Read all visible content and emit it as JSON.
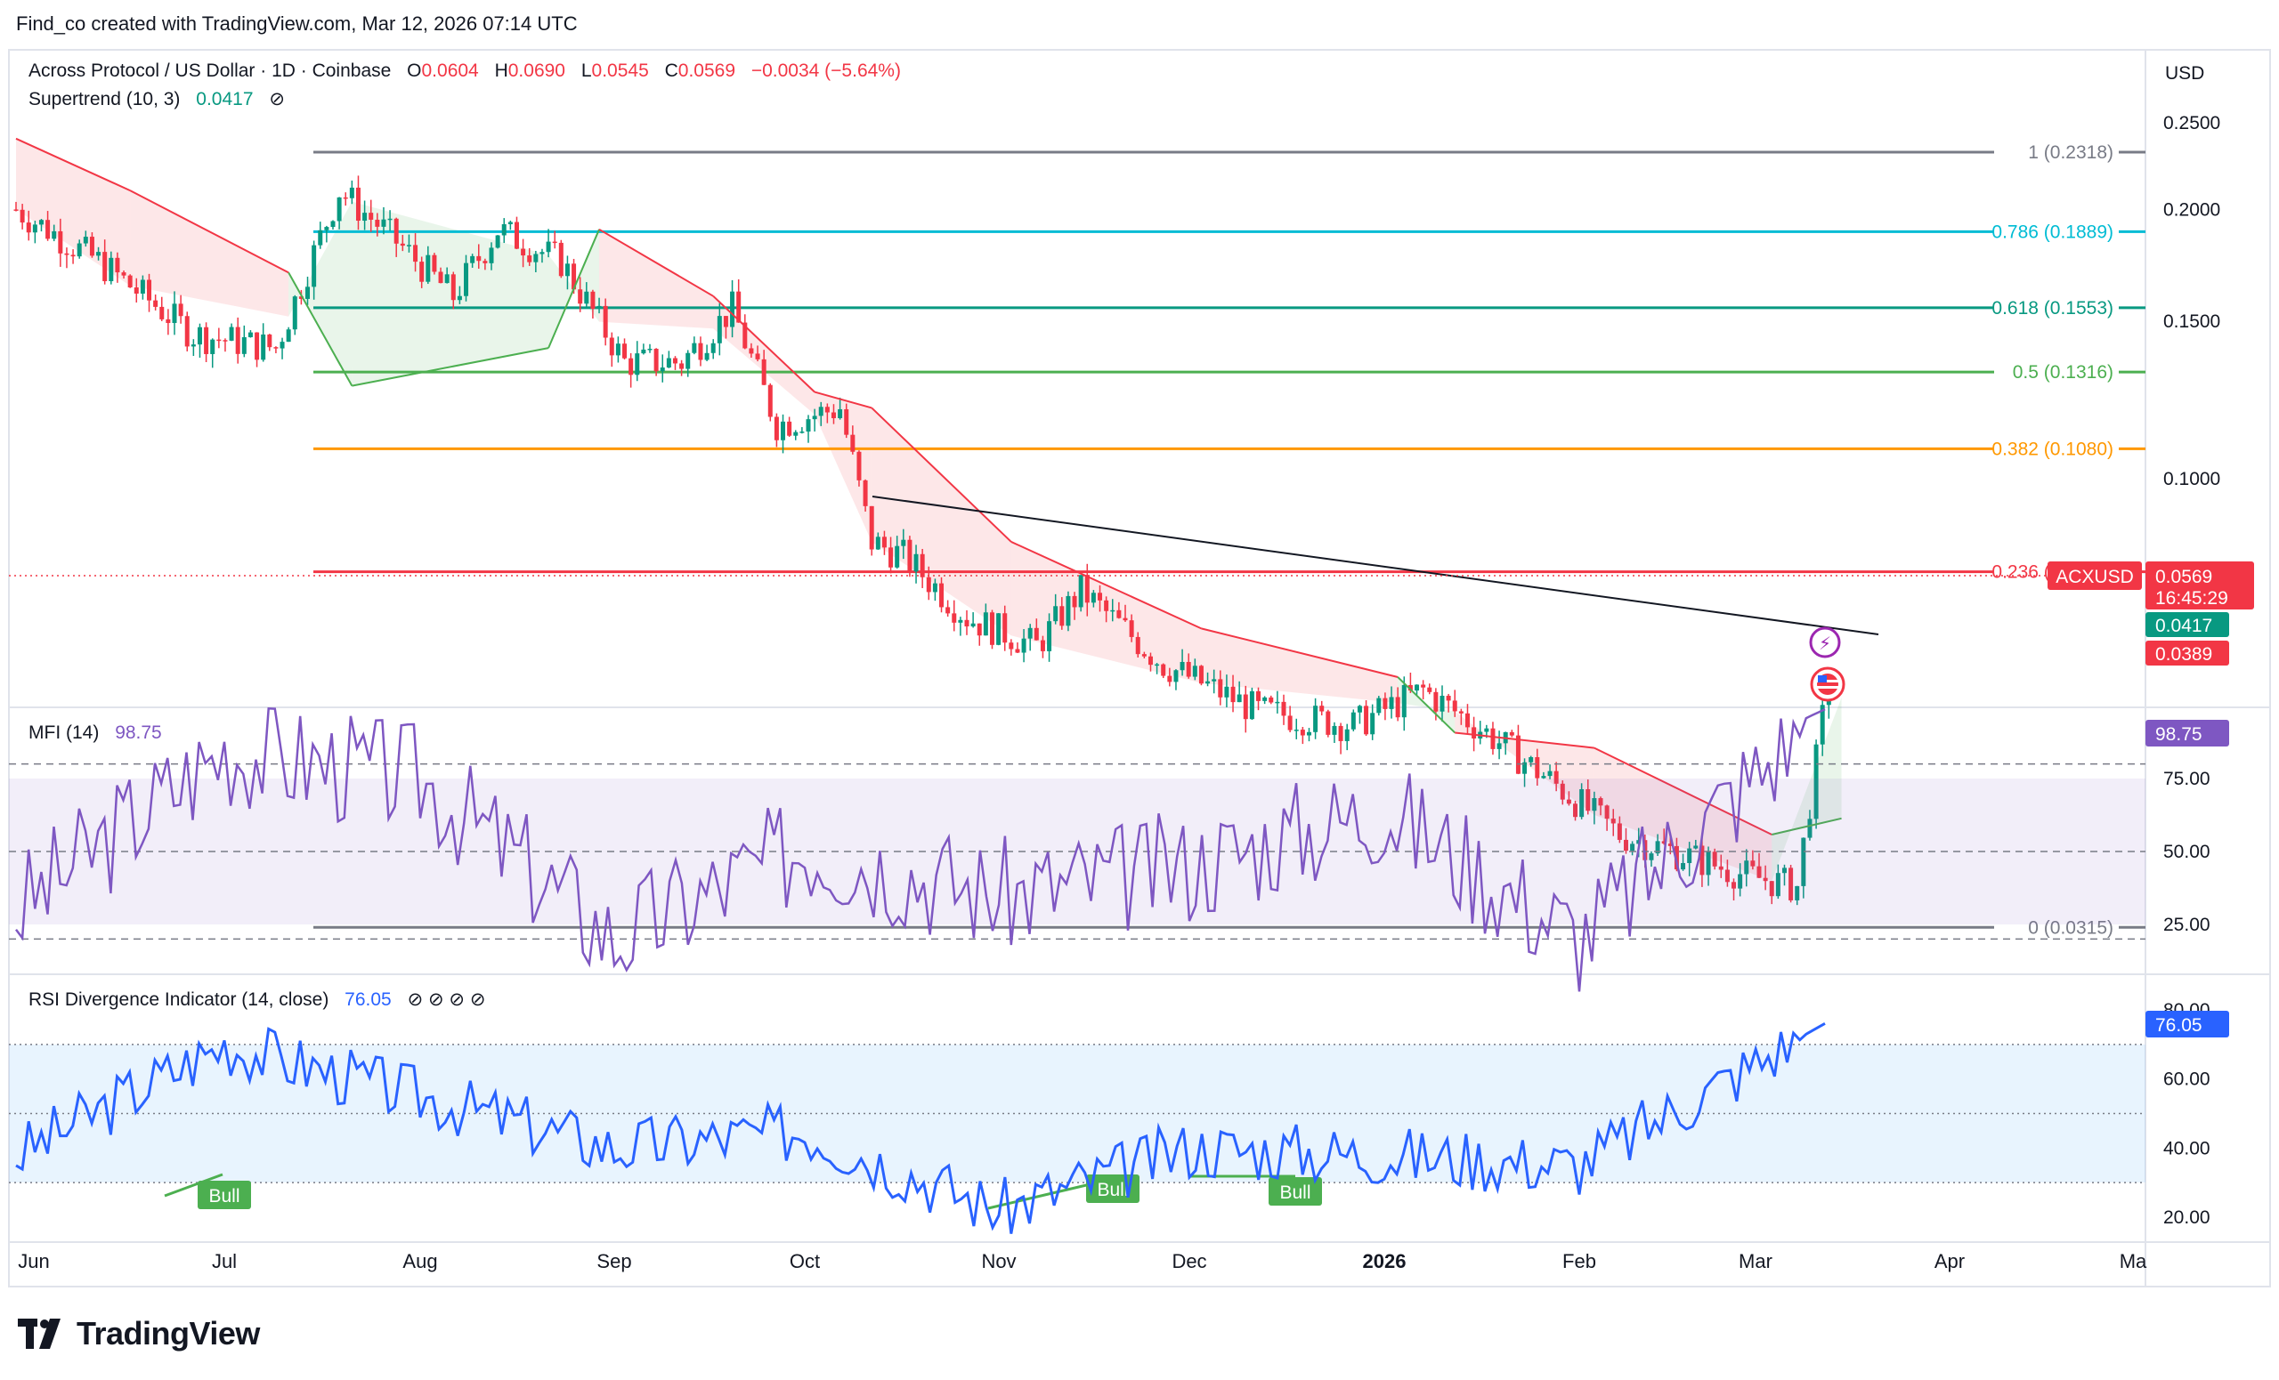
{
  "header": {
    "text": "Find_co created with TradingView.com, Mar 12, 2026 07:14 UTC"
  },
  "footer": {
    "brand": "TradingView"
  },
  "legend": {
    "symbol": "Across Protocol / US Dollar · 1D · Coinbase",
    "o_label": "O",
    "o_val": "0.0604",
    "h_label": "H",
    "h_val": "0.0690",
    "l_label": "L",
    "l_val": "0.0545",
    "c_label": "C",
    "c_val": "0.0569",
    "change": "−0.0034 (−5.64%)",
    "supertrend_label": "Supertrend (10, 3)",
    "supertrend_val": "0.0417",
    "hide_icon": "⊘",
    "mfi_label": "MFI (14)",
    "mfi_val": "98.75",
    "rsi_label": "RSI Divergence Indicator (14, close)",
    "rsi_val": "76.05",
    "rsi_icons": "⊘ ⊘ ⊘ ⊘"
  },
  "price_axis": {
    "currency": "USD",
    "ticks": [
      "0.2500",
      "0.2000",
      "0.1500",
      "0.1000"
    ],
    "tick_values": [
      0.25,
      0.2,
      0.15,
      0.1
    ]
  },
  "badges": {
    "symbol": "ACXUSD",
    "price": "0.0569",
    "countdown": "16:45:29",
    "supertrend": "0.0417",
    "low": "0.0389",
    "mfi": "98.75",
    "rsi": "76.05"
  },
  "fib_levels": [
    {
      "label": "1 (0.2318)",
      "value": 0.2318,
      "color": "#787b86"
    },
    {
      "label": "0.786 (0.1889)",
      "value": 0.1889,
      "color": "#00bcd4"
    },
    {
      "label": "0.618 (0.1553)",
      "value": 0.1553,
      "color": "#089981"
    },
    {
      "label": "0.5 (0.1316)",
      "value": 0.1316,
      "color": "#4caf50"
    },
    {
      "label": "0.382 (0.1080)",
      "value": 0.108,
      "color": "#ff9800"
    },
    {
      "label": "0.236 (0.0787)",
      "value": 0.0787,
      "color": "#f23645"
    },
    {
      "label": "0 (0.0315)",
      "value": 0.0315,
      "color": "#787b86"
    }
  ],
  "mfi_axis": {
    "ticks": [
      "75.00",
      "50.00",
      "25.00"
    ],
    "values": [
      75,
      50,
      25
    ]
  },
  "rsi_axis": {
    "ticks": [
      "80.00",
      "60.00",
      "40.00",
      "20.00"
    ],
    "values": [
      80,
      60,
      40,
      20
    ]
  },
  "bull_labels": [
    "Bull",
    "Bull",
    "Bull"
  ],
  "time_axis": [
    "Jun",
    "Jul",
    "Aug",
    "Sep",
    "Oct",
    "Nov",
    "Dec",
    "2026",
    "Feb",
    "Mar",
    "Apr",
    "Ma"
  ],
  "colors": {
    "up": "#089981",
    "down": "#f23645",
    "mfi": "#7e57c2",
    "rsi": "#2962ff",
    "supertrend_up": "#4caf50",
    "supertrend_down": "#f23645"
  },
  "chart_data": [
    {
      "type": "candlestick",
      "title": "Across Protocol / US Dollar · 1D · Coinbase",
      "series": [
        {
          "name": "ACXUSD close (approx.)",
          "x": [
            "2025-05-28",
            "2025-06-10",
            "2025-06-25",
            "2025-07-08",
            "2025-07-18",
            "2025-07-25",
            "2025-08-05",
            "2025-08-12",
            "2025-08-22",
            "2025-09-01",
            "2025-09-10",
            "2025-09-18",
            "2025-09-25",
            "2025-10-05",
            "2025-10-10",
            "2025-10-15",
            "2025-10-25",
            "2025-11-05",
            "2025-11-12",
            "2025-11-25",
            "2025-12-10",
            "2025-12-25",
            "2026-01-05",
            "2026-01-15",
            "2026-01-25",
            "2026-02-05",
            "2026-02-15",
            "2026-02-25",
            "2026-03-05",
            "2026-03-10",
            "2026-03-12"
          ],
          "values": [
            0.2,
            0.175,
            0.145,
            0.14,
            0.21,
            0.19,
            0.16,
            0.19,
            0.175,
            0.135,
            0.135,
            0.155,
            0.115,
            0.12,
            0.085,
            0.082,
            0.07,
            0.065,
            0.075,
            0.062,
            0.055,
            0.053,
            0.058,
            0.052,
            0.046,
            0.04,
            0.038,
            0.036,
            0.035,
            0.06,
            0.0569
          ]
        },
        {
          "name": "Supertrend (10, 3)",
          "x": [
            "2025-05-28",
            "2025-06-15",
            "2025-07-10",
            "2025-07-20",
            "2025-08-20",
            "2025-08-28",
            "2025-09-15",
            "2025-10-01",
            "2025-10-10",
            "2025-11-01",
            "2025-12-01",
            "2026-01-01",
            "2026-01-10",
            "2026-02-01",
            "2026-03-01",
            "2026-03-12"
          ],
          "values": [
            0.24,
            0.21,
            0.17,
            0.127,
            0.14,
            0.19,
            0.16,
            0.125,
            0.12,
            0.085,
            0.068,
            0.06,
            0.052,
            0.05,
            0.04,
            0.0417
          ]
        }
      ],
      "ylim": [
        0.03,
        0.26
      ],
      "log_scale": true
    },
    {
      "type": "line",
      "title": "MFI (14)",
      "series": [
        {
          "name": "MFI (14)",
          "x": [
            "Jun",
            "Jul",
            "Aug",
            "Sep",
            "Oct",
            "Nov",
            "Dec",
            "Jan",
            "Feb",
            "Mar"
          ],
          "values": [
            30,
            85,
            75,
            20,
            52,
            35,
            45,
            65,
            20,
            98.75
          ]
        }
      ],
      "ylim": [
        0,
        100
      ]
    },
    {
      "type": "line",
      "title": "RSI Divergence Indicator (14, close)",
      "series": [
        {
          "name": "RSI",
          "x": [
            "Jun",
            "Jul",
            "Aug",
            "Sep",
            "Oct",
            "Nov",
            "Dec",
            "Jan",
            "Feb",
            "Mar"
          ],
          "values": [
            38,
            70,
            55,
            40,
            45,
            22,
            40,
            38,
            35,
            76.05
          ]
        }
      ],
      "ylim": [
        15,
        85
      ]
    }
  ]
}
